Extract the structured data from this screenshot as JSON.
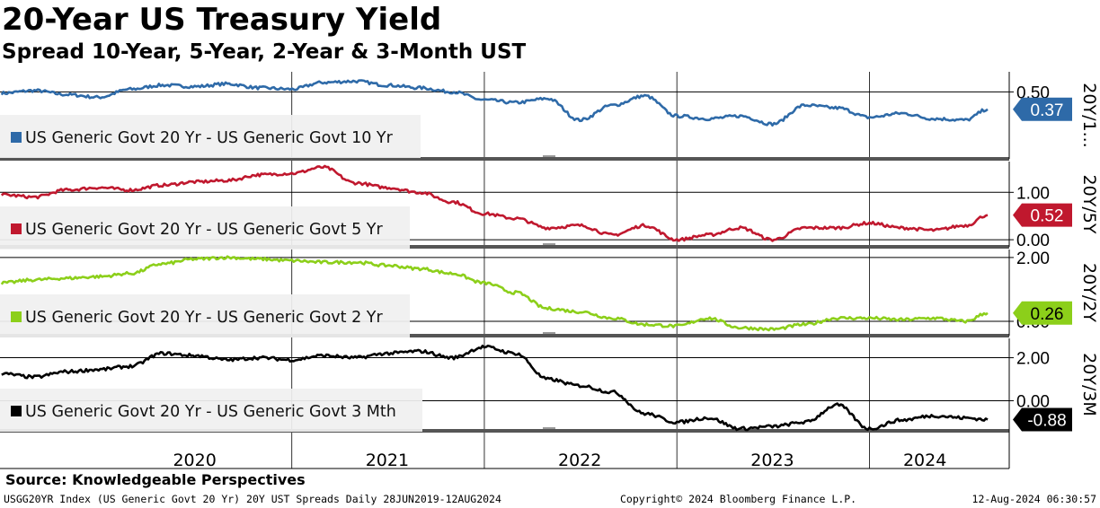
{
  "title": "20-Year US Treasury Yield",
  "subtitle": "Spread 10-Year, 5-Year, 2-Year & 3-Month UST",
  "source": "Source: Knowledgeable Perspectives",
  "footer": {
    "left": "USGG20YR Index (US Generic Govt 20 Yr) 20Y UST Spreads  Daily 28JUN2019-12AUG2024",
    "center": "Copyright© 2024 Bloomberg Finance L.P.",
    "right": "12-Aug-2024 06:30:57"
  },
  "colors": {
    "blue": "#2e6aa8",
    "red": "#c0182e",
    "green": "#8ccf1a",
    "black": "#000000"
  },
  "chart_data": [
    {
      "type": "line",
      "axis_title": "20Y/1...",
      "series": [
        {
          "name": "US Generic Govt 20 Yr - US Generic Govt 10 Yr",
          "color": "#2e6aa8"
        }
      ],
      "y_ticks": [
        {
          "value": 0.5,
          "label": "0.50"
        }
      ],
      "ylim": [
        0.0,
        0.65
      ],
      "last_value": "0.37",
      "x": [
        "2019-07-01",
        "2019-09-01",
        "2019-11-01",
        "2020-01-01",
        "2020-03-01",
        "2020-05-01",
        "2020-07-01",
        "2020-09-01",
        "2020-11-01",
        "2021-01-01",
        "2021-03-01",
        "2021-05-01",
        "2021-07-01",
        "2021-09-01",
        "2021-11-01",
        "2022-01-01",
        "2022-03-01",
        "2022-05-01",
        "2022-07-01",
        "2022-09-01",
        "2022-11-01",
        "2023-01-01",
        "2023-03-01",
        "2023-05-01",
        "2023-07-01",
        "2023-09-01",
        "2023-11-01",
        "2024-01-01",
        "2024-03-01",
        "2024-05-01",
        "2024-07-01",
        "2024-08-12"
      ],
      "y": [
        0.49,
        0.51,
        0.48,
        0.46,
        0.52,
        0.55,
        0.54,
        0.56,
        0.53,
        0.52,
        0.57,
        0.58,
        0.55,
        0.53,
        0.5,
        0.44,
        0.42,
        0.45,
        0.29,
        0.4,
        0.47,
        0.32,
        0.3,
        0.32,
        0.26,
        0.4,
        0.38,
        0.31,
        0.34,
        0.3,
        0.29,
        0.37
      ]
    },
    {
      "type": "line",
      "axis_title": "20Y/5Y",
      "series": [
        {
          "name": "US Generic Govt 20 Yr - US Generic Govt 5 Yr",
          "color": "#c0182e"
        }
      ],
      "y_ticks": [
        {
          "value": 1.0,
          "label": "1.00"
        },
        {
          "value": 0.0,
          "label": "0.00"
        }
      ],
      "ylim": [
        -0.15,
        1.65
      ],
      "last_value": "0.52",
      "x": [
        "2019-07-01",
        "2019-09-01",
        "2019-11-01",
        "2020-01-01",
        "2020-03-01",
        "2020-05-01",
        "2020-07-01",
        "2020-09-01",
        "2020-11-01",
        "2021-01-01",
        "2021-03-01",
        "2021-05-01",
        "2021-07-01",
        "2021-09-01",
        "2021-11-01",
        "2022-01-01",
        "2022-03-01",
        "2022-05-01",
        "2022-07-01",
        "2022-09-01",
        "2022-11-01",
        "2023-01-01",
        "2023-03-01",
        "2023-05-01",
        "2023-07-01",
        "2023-09-01",
        "2023-11-01",
        "2024-01-01",
        "2024-03-01",
        "2024-05-01",
        "2024-07-01",
        "2024-08-12"
      ],
      "y": [
        0.95,
        0.9,
        1.05,
        1.1,
        1.05,
        1.15,
        1.22,
        1.25,
        1.37,
        1.4,
        1.53,
        1.2,
        1.1,
        1.0,
        0.8,
        0.55,
        0.45,
        0.25,
        0.3,
        0.1,
        0.3,
        0.0,
        0.1,
        0.25,
        0.0,
        0.25,
        0.25,
        0.35,
        0.25,
        0.2,
        0.3,
        0.52
      ]
    },
    {
      "type": "line",
      "axis_title": "20Y/2Y",
      "series": [
        {
          "name": "US Generic Govt 20 Yr - US Generic Govt 2 Yr",
          "color": "#8ccf1a"
        }
      ],
      "y_ticks": [
        {
          "value": 2.0,
          "label": "2.00"
        },
        {
          "value": 0.0,
          "label": "0.00"
        }
      ],
      "ylim": [
        -0.45,
        2.25
      ],
      "last_value": "0.26",
      "x": [
        "2019-07-01",
        "2019-09-01",
        "2019-11-01",
        "2020-01-01",
        "2020-03-01",
        "2020-05-01",
        "2020-07-01",
        "2020-09-01",
        "2020-11-01",
        "2021-01-01",
        "2021-03-01",
        "2021-05-01",
        "2021-07-01",
        "2021-09-01",
        "2021-11-01",
        "2022-01-01",
        "2022-03-01",
        "2022-05-01",
        "2022-07-01",
        "2022-09-01",
        "2022-11-01",
        "2023-01-01",
        "2023-03-01",
        "2023-05-01",
        "2023-07-01",
        "2023-09-01",
        "2023-11-01",
        "2024-01-01",
        "2024-03-01",
        "2024-05-01",
        "2024-07-01",
        "2024-08-12"
      ],
      "y": [
        1.2,
        1.3,
        1.35,
        1.4,
        1.5,
        1.8,
        1.95,
        2.0,
        1.95,
        1.9,
        1.85,
        1.85,
        1.75,
        1.65,
        1.5,
        1.2,
        0.9,
        0.4,
        0.3,
        0.1,
        -0.1,
        -0.15,
        0.1,
        -0.2,
        -0.25,
        -0.1,
        0.1,
        0.1,
        0.05,
        0.1,
        0.0,
        0.26
      ]
    },
    {
      "type": "line",
      "axis_title": "20Y/3M",
      "series": [
        {
          "name": "US Generic Govt 20 Yr - US Generic Govt 3 Mth",
          "color": "#000000"
        }
      ],
      "y_ticks": [
        {
          "value": 2.0,
          "label": "2.00"
        },
        {
          "value": 0.0,
          "label": "0.00"
        }
      ],
      "ylim": [
        -1.4,
        2.9
      ],
      "last_value": "-0.88",
      "x": [
        "2019-07-01",
        "2019-09-01",
        "2019-11-01",
        "2020-01-01",
        "2020-03-01",
        "2020-05-01",
        "2020-07-01",
        "2020-09-01",
        "2020-11-01",
        "2021-01-01",
        "2021-03-01",
        "2021-05-01",
        "2021-07-01",
        "2021-09-01",
        "2021-11-01",
        "2022-01-01",
        "2022-03-01",
        "2022-05-01",
        "2022-07-01",
        "2022-09-01",
        "2022-11-01",
        "2023-01-01",
        "2023-03-01",
        "2023-05-01",
        "2023-07-01",
        "2023-09-01",
        "2023-11-01",
        "2024-01-01",
        "2024-03-01",
        "2024-05-01",
        "2024-07-01",
        "2024-08-12"
      ],
      "y": [
        1.25,
        1.1,
        1.35,
        1.45,
        1.6,
        2.2,
        2.1,
        1.9,
        2.0,
        1.9,
        2.1,
        2.0,
        2.2,
        2.3,
        2.0,
        2.5,
        2.2,
        1.0,
        0.7,
        0.4,
        -0.6,
        -1.0,
        -0.8,
        -1.3,
        -1.2,
        -1.0,
        -0.2,
        -1.3,
        -0.9,
        -0.7,
        -0.8,
        -0.88
      ]
    }
  ],
  "x_axis": {
    "labels": [
      {
        "label": "2020",
        "date": "2020-07-01"
      },
      {
        "label": "2021",
        "date": "2021-07-01"
      },
      {
        "label": "2022",
        "date": "2022-07-01"
      },
      {
        "label": "2023",
        "date": "2023-07-01"
      },
      {
        "label": "2024",
        "date": "2024-04-15"
      }
    ],
    "gridlines": [
      "2021-01-01",
      "2022-01-01",
      "2023-01-01",
      "2024-01-01"
    ],
    "start": "2019-06-28",
    "end": "2024-08-12"
  }
}
